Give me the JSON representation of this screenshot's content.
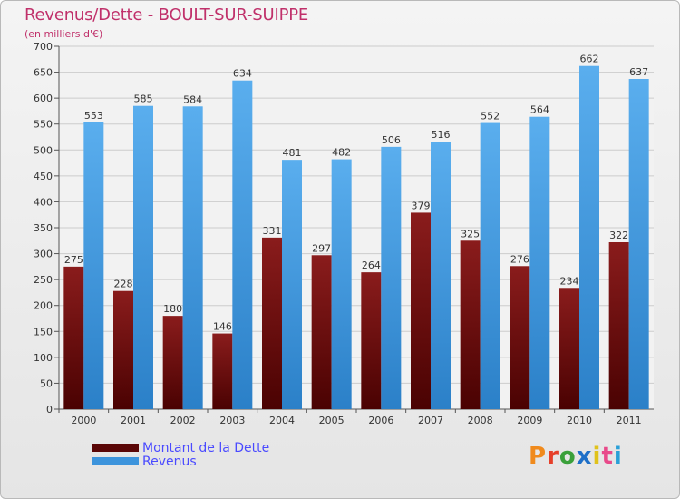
{
  "header": {
    "title": "Revenus/Dette - BOULT-SUR-SUIPPE",
    "subtitle": "(en milliers d'€)"
  },
  "colors": {
    "dette": "#7a1010",
    "revenus": "#3d94dc",
    "title": "#c0306a",
    "legend_text": "#4a4aff",
    "grid": "#cccccc",
    "axis_text": "#333333"
  },
  "legend": {
    "items": [
      {
        "label": "Montant de la Dette",
        "color": "#5a0606"
      },
      {
        "label": "Revenus",
        "color": "#3d94dc"
      }
    ]
  },
  "logo": {
    "text": "Proxiti",
    "letter_colors": [
      "#f08a1c",
      "#e6402a",
      "#3aa03a",
      "#1e6fc8",
      "#e0c21c",
      "#e84a8a",
      "#2aa0d8"
    ]
  },
  "chart_data": {
    "type": "bar",
    "categories": [
      "2000",
      "2001",
      "2002",
      "2003",
      "2004",
      "2005",
      "2006",
      "2007",
      "2008",
      "2009",
      "2010",
      "2011"
    ],
    "series": [
      {
        "name": "Montant de la Dette",
        "values": [
          275,
          228,
          180,
          146,
          331,
          297,
          264,
          379,
          325,
          276,
          234,
          322
        ]
      },
      {
        "name": "Revenus",
        "values": [
          553,
          585,
          584,
          634,
          481,
          482,
          506,
          516,
          552,
          564,
          662,
          637
        ]
      }
    ],
    "ylim": [
      0,
      700
    ],
    "yticks": [
      0,
      50,
      100,
      150,
      200,
      250,
      300,
      350,
      400,
      450,
      500,
      550,
      600,
      650,
      700
    ],
    "grid": true,
    "legend_position": "bottom-left"
  }
}
